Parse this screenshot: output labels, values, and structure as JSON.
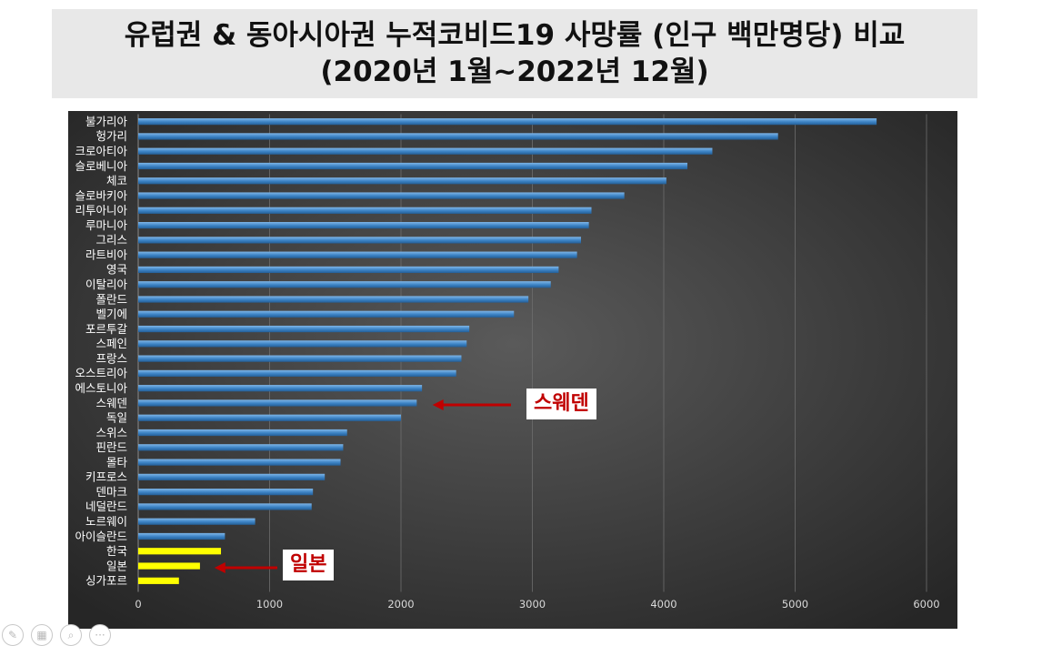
{
  "title": {
    "line1": "유럽권 & 동아시아권 누적코비드19 사망률 (인구 백만명당) 비교",
    "line2": "(2020년 1월~2022년 12월)"
  },
  "chart_data": {
    "type": "bar",
    "orientation": "horizontal",
    "title": "",
    "xlabel": "",
    "ylabel": "",
    "xlim": [
      0,
      6000
    ],
    "xticks": [
      0,
      1000,
      2000,
      3000,
      4000,
      5000,
      6000
    ],
    "grid": true,
    "colors": {
      "europe": "#3b82c4",
      "east_asia": "#ffff00",
      "background": "#3a3a3a"
    },
    "categories": [
      "불가리아",
      "헝가리",
      "크로아티아",
      "슬로베니아",
      "체코",
      "슬로바키아",
      "리투아니아",
      "루마니아",
      "그리스",
      "라트비아",
      "영국",
      "이탈리아",
      "폴란드",
      "벨기에",
      "포르투갈",
      "스페인",
      "프랑스",
      "오스트리아",
      "에스토니아",
      "스웨덴",
      "독일",
      "스위스",
      "핀란드",
      "몰타",
      "키프로스",
      "덴마크",
      "네덜란드",
      "노르웨이",
      "아이슬란드",
      "한국",
      "일본",
      "싱가포르"
    ],
    "values": [
      5620,
      4870,
      4370,
      4180,
      4020,
      3700,
      3450,
      3430,
      3370,
      3340,
      3200,
      3140,
      2970,
      2860,
      2520,
      2500,
      2460,
      2420,
      2160,
      2120,
      2000,
      1590,
      1560,
      1540,
      1420,
      1330,
      1320,
      890,
      660,
      630,
      470,
      310
    ],
    "highlighted": [
      "한국",
      "일본",
      "싱가포르"
    ],
    "annotations": [
      {
        "label": "스웨덴",
        "target": "스웨덴",
        "color": "#c00000"
      },
      {
        "label": "일본",
        "target": "일본",
        "color": "#c00000"
      }
    ]
  },
  "toolbar": {
    "icons": [
      "pen-icon",
      "slides-icon",
      "zoom-icon",
      "more-icon"
    ],
    "glyphs": [
      "✎",
      "▦",
      "⌕",
      "···"
    ]
  }
}
